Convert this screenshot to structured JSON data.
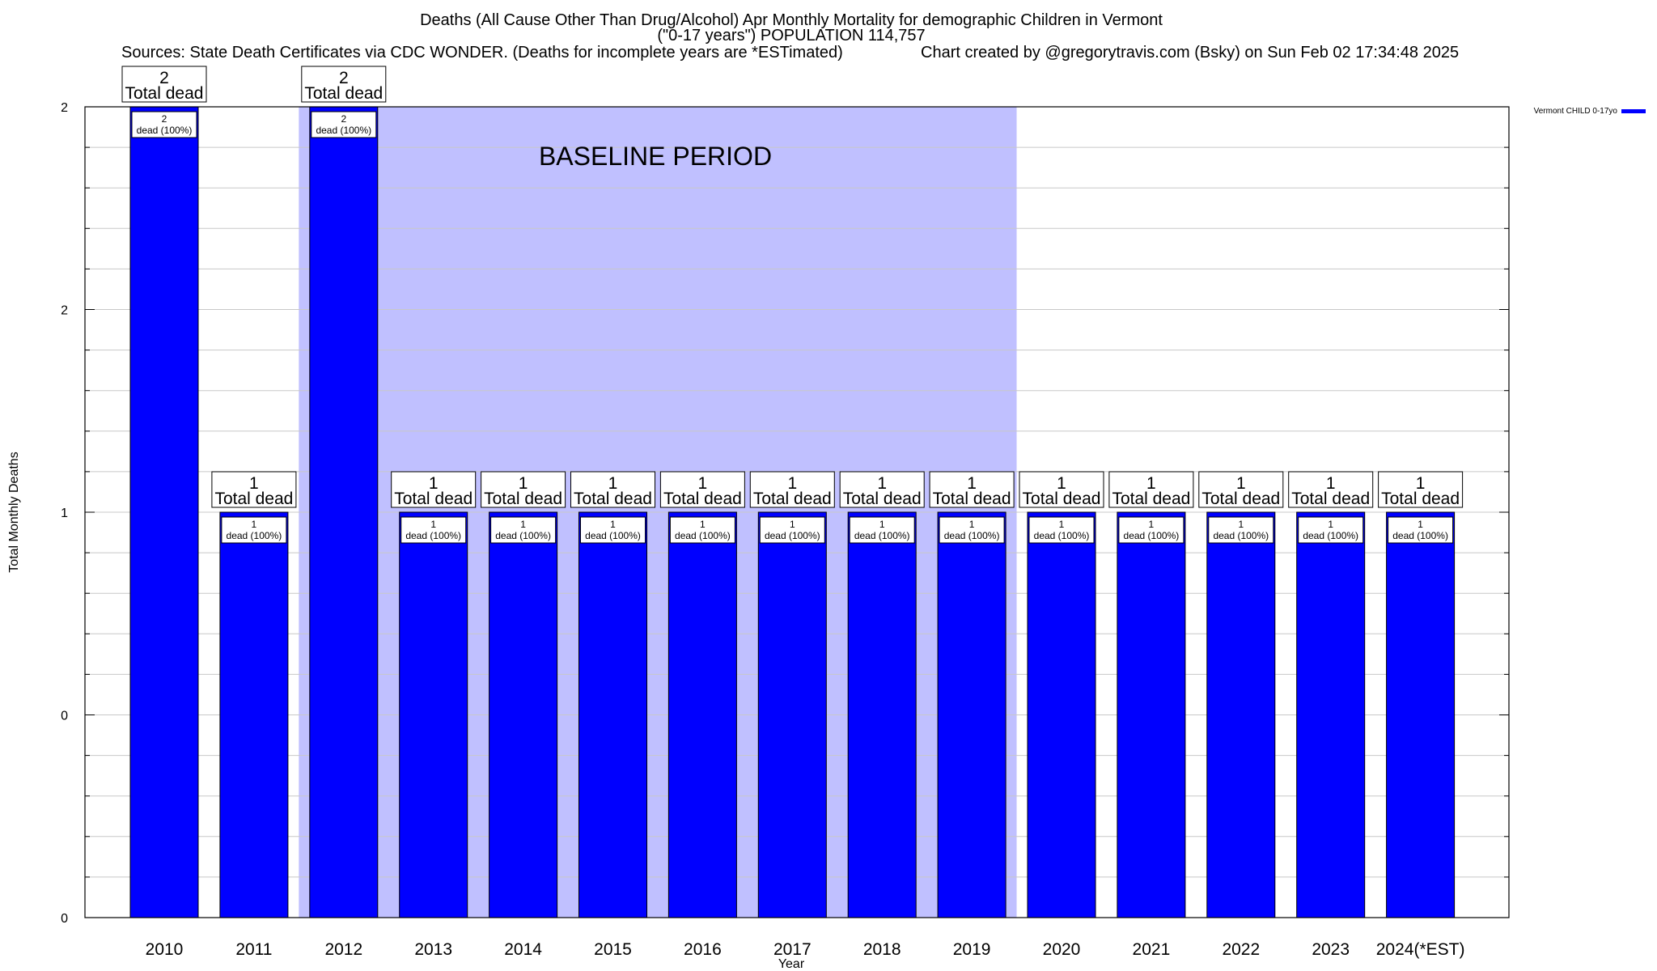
{
  "header": {
    "title_line1": "Deaths (All Cause Other Than Drug/Alcohol) Apr Monthly Mortality for demographic Children in Vermont",
    "title_line2": "(\"0-17 years\") POPULATION 114,757",
    "sources": "Sources: State Death Certificates via CDC WONDER. (Deaths for incomplete years are *ESTimated)",
    "credit": "Chart created by @gregorytravis.com (Bsky) on Sun Feb 02 17:34:48 2025"
  },
  "colors": {
    "bar": "#0000ff",
    "baseline_shade": "#c0c0ff",
    "grid": "#c8c8c8",
    "axis": "#000000",
    "box_fill": "#ffffff"
  },
  "chart_data": {
    "type": "bar",
    "title": "Deaths (All Cause Other Than Drug/Alcohol) Apr Monthly Mortality for demographic Children in Vermont",
    "subtitle": "(\"0-17 years\") POPULATION 114,757",
    "xlabel": "Year",
    "ylabel": "Total Monthly Deaths",
    "categories": [
      "2010",
      "2011",
      "2012",
      "2013",
      "2014",
      "2015",
      "2016",
      "2017",
      "2018",
      "2019",
      "2020",
      "2021",
      "2022",
      "2023",
      "2024(*EST)"
    ],
    "series": [
      {
        "name": "Vermont CHILD 0-17yo",
        "values": [
          2,
          1,
          2,
          1,
          1,
          1,
          1,
          1,
          1,
          1,
          1,
          1,
          1,
          1,
          1
        ]
      }
    ],
    "total_label_text": "Total dead",
    "inbar_label_text": "dead (100%)",
    "ytick_labels": [
      "0",
      "0",
      "1",
      "2",
      "2"
    ],
    "ytick_values": [
      0,
      0.5,
      1,
      1.5,
      2
    ],
    "ylim": [
      0,
      2
    ],
    "baseline_period": {
      "label": "BASELINE PERIOD",
      "start": "2012",
      "end": "2019"
    },
    "grid": true,
    "legend_position": "top-right"
  }
}
